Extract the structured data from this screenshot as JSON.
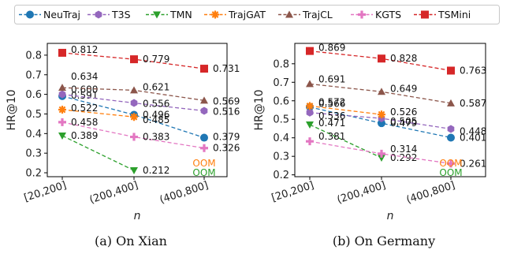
{
  "legend": [
    {
      "name": "NeuTraj",
      "color": "#1f77b4",
      "marker": "circle"
    },
    {
      "name": "T3S",
      "color": "#9467bd",
      "marker": "hexagon"
    },
    {
      "name": "TMN",
      "color": "#2ca02c",
      "marker": "triangle-down"
    },
    {
      "name": "TrajGAT",
      "color": "#ff7f0e",
      "marker": "star"
    },
    {
      "name": "TrajCL",
      "color": "#8c564b",
      "marker": "triangle-up"
    },
    {
      "name": "KGTS",
      "color": "#e377c2",
      "marker": "plus"
    },
    {
      "name": "TSMini",
      "color": "#d62728",
      "marker": "square"
    }
  ],
  "chart_data": [
    {
      "type": "line",
      "caption": "(a) On Xian",
      "xlabel": "n",
      "ylabel": "HR@10",
      "categories": [
        "[20,200]",
        "(200,400]",
        "(400,800]"
      ],
      "ylim": [
        0.18,
        0.86
      ],
      "yticks": [
        "0.2",
        "0.3",
        "0.4",
        "0.5",
        "0.6",
        "0.7",
        "0.8"
      ],
      "grid": false,
      "series": [
        {
          "name": "NeuTraj",
          "values": [
            0.591,
            0.496,
            0.379
          ],
          "labels": [
            "0.591",
            "0.496",
            "0.379"
          ]
        },
        {
          "name": "T3S",
          "values": [
            0.6,
            0.556,
            0.516
          ],
          "labels": [
            "0.600",
            "0.556",
            "0.516"
          ]
        },
        {
          "name": "TMN",
          "values": [
            0.389,
            0.212,
            null
          ],
          "labels": [
            "0.389",
            "0.212",
            null
          ]
        },
        {
          "name": "TrajGAT",
          "values": [
            0.522,
            0.485,
            null
          ],
          "labels": [
            "0.522",
            "0.485",
            null
          ]
        },
        {
          "name": "TrajCL",
          "values": [
            0.634,
            0.621,
            0.569
          ],
          "labels": [
            "0.634",
            "0.621",
            "0.569"
          ]
        },
        {
          "name": "KGTS",
          "values": [
            0.458,
            0.383,
            0.326
          ],
          "labels": [
            "0.458",
            "0.383",
            "0.326"
          ]
        },
        {
          "name": "TSMini",
          "values": [
            0.812,
            0.779,
            0.731
          ],
          "labels": [
            "0.812",
            "0.779",
            "0.731"
          ]
        }
      ],
      "oom_labels": [
        {
          "series": "TrajGAT",
          "text": "OOM"
        },
        {
          "series": "TMN",
          "text": "OOM"
        }
      ]
    },
    {
      "type": "line",
      "caption": "(b) On Germany",
      "xlabel": "n",
      "ylabel": "HR@10",
      "categories": [
        "[20,200]",
        "(200,400]",
        "(400,800]"
      ],
      "ylim": [
        0.19,
        0.91
      ],
      "yticks": [
        "0.2",
        "0.3",
        "0.4",
        "0.5",
        "0.6",
        "0.7",
        "0.8"
      ],
      "grid": false,
      "series": [
        {
          "name": "NeuTraj",
          "values": [
            0.566,
            0.479,
            0.401
          ],
          "labels": [
            "0.566",
            "0.479",
            "0.401"
          ]
        },
        {
          "name": "T3S",
          "values": [
            0.536,
            0.505,
            0.448
          ],
          "labels": [
            "0.536",
            "0.505",
            "0.448"
          ]
        },
        {
          "name": "TMN",
          "values": [
            0.471,
            0.292,
            null
          ],
          "labels": [
            "0.471",
            "0.292",
            null
          ]
        },
        {
          "name": "TrajGAT",
          "values": [
            0.572,
            0.526,
            null
          ],
          "labels": [
            "0.572",
            "0.526",
            null
          ]
        },
        {
          "name": "TrajCL",
          "values": [
            0.691,
            0.649,
            0.587
          ],
          "labels": [
            "0.691",
            "0.649",
            "0.587"
          ]
        },
        {
          "name": "KGTS",
          "values": [
            0.381,
            0.314,
            0.261
          ],
          "labels": [
            "0.381",
            "0.314",
            "0.261"
          ]
        },
        {
          "name": "TSMini",
          "values": [
            0.869,
            0.828,
            0.763
          ],
          "labels": [
            "0.869",
            "0.828",
            "0.763"
          ]
        }
      ],
      "oom_labels": [
        {
          "series": "TrajGAT",
          "text": "OOM"
        },
        {
          "series": "TMN",
          "text": "OOM"
        }
      ]
    }
  ]
}
